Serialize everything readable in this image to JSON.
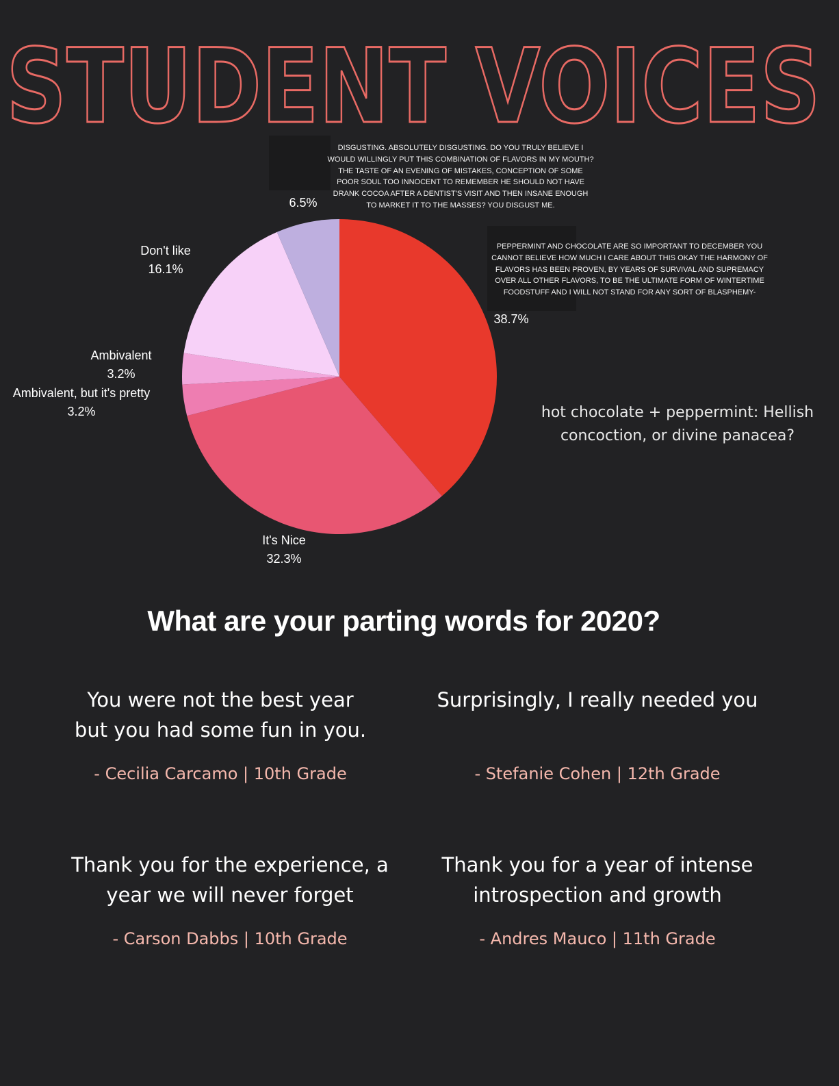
{
  "page": {
    "title": "STUDENT VOICES",
    "title_color": "#e86a64",
    "background": "#222224"
  },
  "rants": [
    {
      "text": "DISGUSTING. ABSOLUTELY DISGUSTING. DO YOU TRULY BELIEVE I WOULD WILLINGLY PUT THIS COMBINATION OF FLAVORS IN MY MOUTH? THE TASTE OF AN EVENING OF MISTAKES, CONCEPTION OF SOME POOR SOUL TOO INNOCENT TO REMEMBER HE SHOULD NOT HAVE DRANK COCOA AFTER A DENTIST'S VISIT AND THEN INSANE ENOUGH TO MARKET IT TO THE MASSES? YOU DISGUST ME."
    },
    {
      "text": "PEPPERMINT AND CHOCOLATE ARE SO IMPORTANT TO DECEMBER YOU CANNOT BELIEVE HOW MUCH I CARE ABOUT THIS OKAY THE HARMONY OF FLAVORS HAS BEEN PROVEN, BY YEARS OF SURVIVAL AND SUPREMACY OVER ALL OTHER FLAVORS, TO BE THE ULTIMATE FORM OF WINTERTIME FOODSTUFF AND I WILL NOT STAND FOR ANY SORT OF BLASPHEMY-"
    }
  ],
  "poll": {
    "question": "hot chocolate + peppermint: Hellish concoction, or divine panacea?"
  },
  "chart_data": {
    "type": "pie",
    "title": "",
    "start_angle_deg": 0,
    "direction": "clockwise",
    "slices": [
      {
        "label": "",
        "value": 38.7,
        "display": "38.7%",
        "color": "#e8392c"
      },
      {
        "label": "It's Nice",
        "value": 32.3,
        "display": "32.3%",
        "color": "#e85672"
      },
      {
        "label": "Ambivalent, but it's pretty",
        "value": 3.2,
        "display": "3.2%",
        "color": "#ee7db1"
      },
      {
        "label": "Ambivalent",
        "value": 3.2,
        "display": "3.2%",
        "color": "#f2a7dc"
      },
      {
        "label": "Don't like",
        "value": 16.1,
        "display": "16.1%",
        "color": "#f7d1f8"
      },
      {
        "label": "",
        "value": 6.5,
        "display": "6.5%",
        "color": "#beafdf"
      }
    ]
  },
  "section": {
    "heading": "What are your parting words for 2020?"
  },
  "quotes": [
    {
      "text": "You were not the best year but you had some fun in you.",
      "author": "- Cecilia Carcamo | 10th Grade"
    },
    {
      "text": "Surprisingly, I really needed you",
      "author": "- Stefanie Cohen | 12th Grade"
    },
    {
      "text": "Thank you for the experience, a year we will never forget",
      "author": "- Carson Dabbs | 10th Grade"
    },
    {
      "text": "Thank you for a year of intense introspection and growth",
      "author": "- Andres Mauco | 11th Grade"
    }
  ]
}
